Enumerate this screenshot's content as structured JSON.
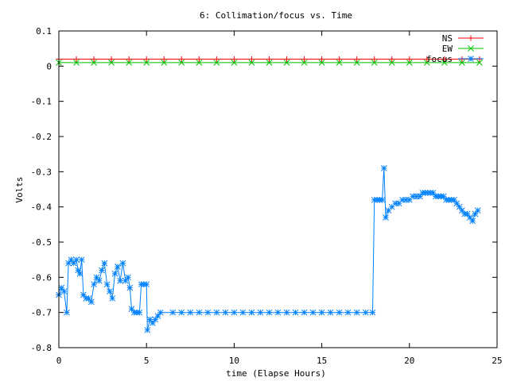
{
  "chart_data": {
    "type": "line",
    "title": "6: Collimation/focus vs. Time",
    "xlabel": "time (Elapse Hours)",
    "ylabel": "Volts",
    "xlim": [
      0,
      25
    ],
    "ylim": [
      -0.8,
      0.1
    ],
    "xticks": [
      "0",
      "5",
      "10",
      "15",
      "20",
      "25"
    ],
    "yticks": [
      "0.1",
      "0",
      "-0.1",
      "-0.2",
      "-0.3",
      "-0.4",
      "-0.5",
      "-0.6",
      "-0.7",
      "-0.8"
    ],
    "grid": false,
    "legend_position": "top-right",
    "series": [
      {
        "name": "NS",
        "color": "#ff0000",
        "marker": "plus",
        "points": [
          [
            0,
            0.02
          ],
          [
            1,
            0.02
          ],
          [
            2,
            0.02
          ],
          [
            3,
            0.02
          ],
          [
            4,
            0.02
          ],
          [
            5,
            0.02
          ],
          [
            6,
            0.02
          ],
          [
            7,
            0.02
          ],
          [
            8,
            0.02
          ],
          [
            9,
            0.02
          ],
          [
            10,
            0.02
          ],
          [
            11,
            0.02
          ],
          [
            12,
            0.02
          ],
          [
            13,
            0.02
          ],
          [
            14,
            0.02
          ],
          [
            15,
            0.02
          ],
          [
            16,
            0.02
          ],
          [
            17,
            0.02
          ],
          [
            18,
            0.02
          ],
          [
            19,
            0.02
          ],
          [
            20,
            0.02
          ],
          [
            21,
            0.02
          ],
          [
            22,
            0.02
          ],
          [
            23,
            0.02
          ],
          [
            24,
            0.02
          ]
        ]
      },
      {
        "name": "EW",
        "color": "#00c000",
        "marker": "cross",
        "points": [
          [
            0,
            0.01
          ],
          [
            1,
            0.01
          ],
          [
            2,
            0.01
          ],
          [
            3,
            0.01
          ],
          [
            4,
            0.01
          ],
          [
            5,
            0.01
          ],
          [
            6,
            0.01
          ],
          [
            7,
            0.01
          ],
          [
            8,
            0.01
          ],
          [
            9,
            0.01
          ],
          [
            10,
            0.01
          ],
          [
            11,
            0.01
          ],
          [
            12,
            0.01
          ],
          [
            13,
            0.01
          ],
          [
            14,
            0.01
          ],
          [
            15,
            0.01
          ],
          [
            16,
            0.01
          ],
          [
            17,
            0.01
          ],
          [
            18,
            0.01
          ],
          [
            19,
            0.01
          ],
          [
            20,
            0.01
          ],
          [
            21,
            0.01
          ],
          [
            22,
            0.01
          ],
          [
            23,
            0.01
          ],
          [
            24,
            0.01
          ]
        ]
      },
      {
        "name": "focus",
        "color": "#0080ff",
        "marker": "star",
        "points": [
          [
            0.0,
            -0.65
          ],
          [
            0.15,
            -0.63
          ],
          [
            0.3,
            -0.64
          ],
          [
            0.45,
            -0.7
          ],
          [
            0.55,
            -0.56
          ],
          [
            0.7,
            -0.55
          ],
          [
            0.85,
            -0.56
          ],
          [
            1.0,
            -0.55
          ],
          [
            1.1,
            -0.58
          ],
          [
            1.2,
            -0.59
          ],
          [
            1.3,
            -0.55
          ],
          [
            1.4,
            -0.65
          ],
          [
            1.55,
            -0.66
          ],
          [
            1.7,
            -0.66
          ],
          [
            1.85,
            -0.67
          ],
          [
            2.0,
            -0.62
          ],
          [
            2.15,
            -0.6
          ],
          [
            2.3,
            -0.61
          ],
          [
            2.45,
            -0.58
          ],
          [
            2.6,
            -0.56
          ],
          [
            2.75,
            -0.62
          ],
          [
            2.9,
            -0.64
          ],
          [
            3.05,
            -0.66
          ],
          [
            3.2,
            -0.59
          ],
          [
            3.35,
            -0.57
          ],
          [
            3.5,
            -0.61
          ],
          [
            3.65,
            -0.56
          ],
          [
            3.8,
            -0.61
          ],
          [
            3.95,
            -0.6
          ],
          [
            4.05,
            -0.63
          ],
          [
            4.15,
            -0.69
          ],
          [
            4.3,
            -0.7
          ],
          [
            4.45,
            -0.7
          ],
          [
            4.6,
            -0.7
          ],
          [
            4.7,
            -0.62
          ],
          [
            4.85,
            -0.62
          ],
          [
            5.0,
            -0.62
          ],
          [
            5.05,
            -0.75
          ],
          [
            5.2,
            -0.72
          ],
          [
            5.35,
            -0.73
          ],
          [
            5.5,
            -0.72
          ],
          [
            5.65,
            -0.71
          ],
          [
            5.8,
            -0.7
          ],
          [
            6.5,
            -0.7
          ],
          [
            7.0,
            -0.7
          ],
          [
            7.5,
            -0.7
          ],
          [
            8.0,
            -0.7
          ],
          [
            8.5,
            -0.7
          ],
          [
            9.0,
            -0.7
          ],
          [
            9.5,
            -0.7
          ],
          [
            10.0,
            -0.7
          ],
          [
            10.5,
            -0.7
          ],
          [
            11.0,
            -0.7
          ],
          [
            11.5,
            -0.7
          ],
          [
            12.0,
            -0.7
          ],
          [
            12.5,
            -0.7
          ],
          [
            13.0,
            -0.7
          ],
          [
            13.5,
            -0.7
          ],
          [
            14.0,
            -0.7
          ],
          [
            14.5,
            -0.7
          ],
          [
            15.0,
            -0.7
          ],
          [
            15.5,
            -0.7
          ],
          [
            16.0,
            -0.7
          ],
          [
            16.5,
            -0.7
          ],
          [
            17.0,
            -0.7
          ],
          [
            17.5,
            -0.7
          ],
          [
            17.9,
            -0.7
          ],
          [
            18.0,
            -0.38
          ],
          [
            18.15,
            -0.38
          ],
          [
            18.3,
            -0.38
          ],
          [
            18.45,
            -0.38
          ],
          [
            18.55,
            -0.29
          ],
          [
            18.65,
            -0.43
          ],
          [
            18.8,
            -0.41
          ],
          [
            19.0,
            -0.4
          ],
          [
            19.2,
            -0.39
          ],
          [
            19.4,
            -0.39
          ],
          [
            19.6,
            -0.38
          ],
          [
            19.8,
            -0.38
          ],
          [
            20.0,
            -0.38
          ],
          [
            20.2,
            -0.37
          ],
          [
            20.4,
            -0.37
          ],
          [
            20.6,
            -0.37
          ],
          [
            20.75,
            -0.36
          ],
          [
            20.9,
            -0.36
          ],
          [
            21.05,
            -0.36
          ],
          [
            21.2,
            -0.36
          ],
          [
            21.35,
            -0.36
          ],
          [
            21.5,
            -0.37
          ],
          [
            21.65,
            -0.37
          ],
          [
            21.8,
            -0.37
          ],
          [
            21.95,
            -0.37
          ],
          [
            22.1,
            -0.38
          ],
          [
            22.25,
            -0.38
          ],
          [
            22.4,
            -0.38
          ],
          [
            22.55,
            -0.38
          ],
          [
            22.7,
            -0.39
          ],
          [
            22.85,
            -0.4
          ],
          [
            23.0,
            -0.41
          ],
          [
            23.15,
            -0.42
          ],
          [
            23.3,
            -0.42
          ],
          [
            23.45,
            -0.43
          ],
          [
            23.6,
            -0.44
          ],
          [
            23.75,
            -0.42
          ],
          [
            23.9,
            -0.41
          ]
        ]
      }
    ]
  }
}
